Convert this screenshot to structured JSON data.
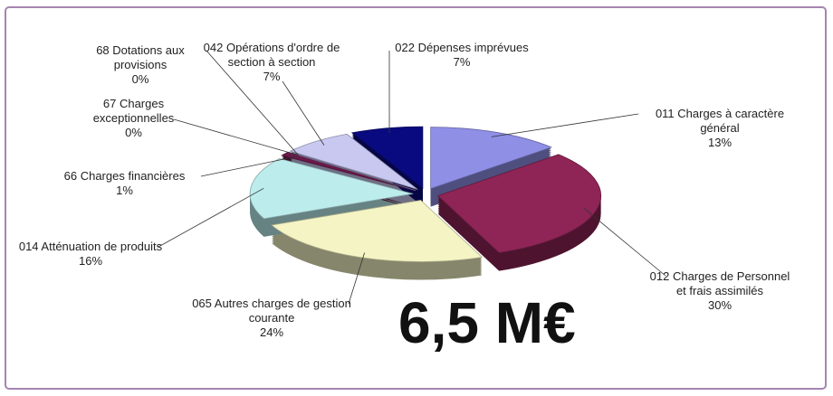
{
  "chart_data": {
    "type": "pie",
    "categories": [
      "011 Charges à caractère général",
      "012 Charges de Personnel et frais assimilés",
      "065 Autres charges de gestion courante",
      "014 Atténuation de produits",
      "66 Charges financières",
      "67 Charges exceptionnelles",
      "68 Dotations aux provisions",
      "042 Opérations d'ordre de section à section",
      "022 Dépenses imprévues"
    ],
    "values": [
      13,
      30,
      24,
      16,
      1,
      0,
      0,
      7,
      7
    ],
    "value_labels": [
      "13%",
      "30%",
      "24%",
      "16%",
      "1%",
      "0%",
      "0%",
      "7%",
      "7%"
    ],
    "colors": [
      "#8f8fe6",
      "#8e2556",
      "#f4f4c4",
      "#bcecec",
      "#6a1a48",
      "#7a3a6a",
      "#9a9ad0",
      "#c8c8f0",
      "#0a0a80"
    ],
    "annotation": "6,5 M€"
  }
}
